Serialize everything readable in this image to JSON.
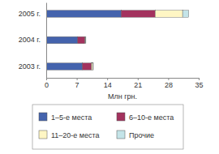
{
  "chart_data": {
    "type": "bar",
    "orientation": "horizontal",
    "stacked": true,
    "x_label": "Млн грн.",
    "categories": [
      "2005 г.",
      "2004 г.",
      "2003 г."
    ],
    "series": [
      {
        "name": "1–5-е места",
        "color": "#4463ad",
        "values": [
          17.2,
          7.2,
          8.3
        ]
      },
      {
        "name": "6–10-е места",
        "color": "#a3325e",
        "values": [
          7.8,
          1.7,
          2.1
        ]
      },
      {
        "name": "11–20-е места",
        "color": "#fff6c4",
        "values": [
          6.3,
          0.1,
          0.3
        ]
      },
      {
        "name": "Прочие",
        "color": "#c4e4e8",
        "values": [
          1.4,
          0.1,
          0.1
        ]
      }
    ],
    "xlim": [
      0,
      35
    ],
    "xticks": [
      0,
      7,
      14,
      21,
      28,
      35
    ],
    "grid": false,
    "legend": "bottom"
  }
}
